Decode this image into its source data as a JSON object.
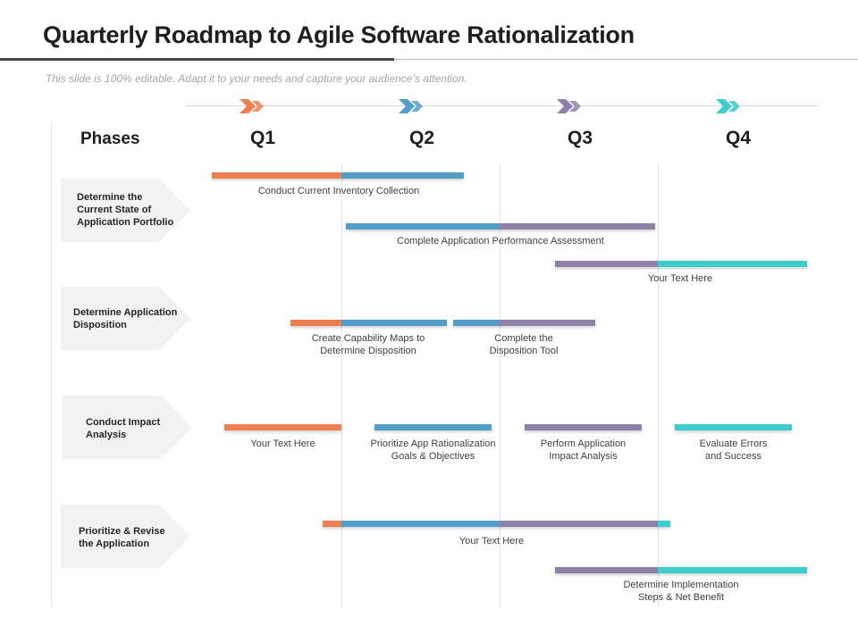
{
  "title": "Quarterly Roadmap to Agile Software Rationalization",
  "subtitle": "This slide is 100% editable. Adapt it to your needs and capture your audience’s attention.",
  "colors": {
    "orange": "#ee7f51",
    "blue": "#539ec9",
    "purple": "#8e81a8",
    "teal": "#3ecdcd",
    "phase_bg": "#f2f2f2"
  },
  "headers": {
    "phases": "Phases",
    "q1": "Q1",
    "q2": "Q2",
    "q3": "Q3",
    "q4": "Q4"
  },
  "phases": [
    {
      "label": "Determine the\nCurrent State of\nApplication Portfolio"
    },
    {
      "label": "Determine Application\nDisposition"
    },
    {
      "label": "Conduct Impact\nAnalysis"
    },
    {
      "label": "Prioritize & Revise\nthe Application"
    }
  ],
  "tasks": [
    {
      "label": "Conduct Current Inventory Collection"
    },
    {
      "label": "Complete Application  Performance Assessment"
    },
    {
      "label": "Your Text Here"
    },
    {
      "label": "Create Capability  Maps to\nDetermine Disposition"
    },
    {
      "label": "Complete the\nDisposition  Tool"
    },
    {
      "label": "Your Text Here"
    },
    {
      "label": "Prioritize App Rationalization\nGoals & Objectives"
    },
    {
      "label": "Perform Application\nImpact Analysis"
    },
    {
      "label": "Evaluate Errors\nand Success"
    },
    {
      "label": "Your Text Here"
    },
    {
      "label": "Determine Implementation\nSteps & Net Benefit"
    }
  ]
}
